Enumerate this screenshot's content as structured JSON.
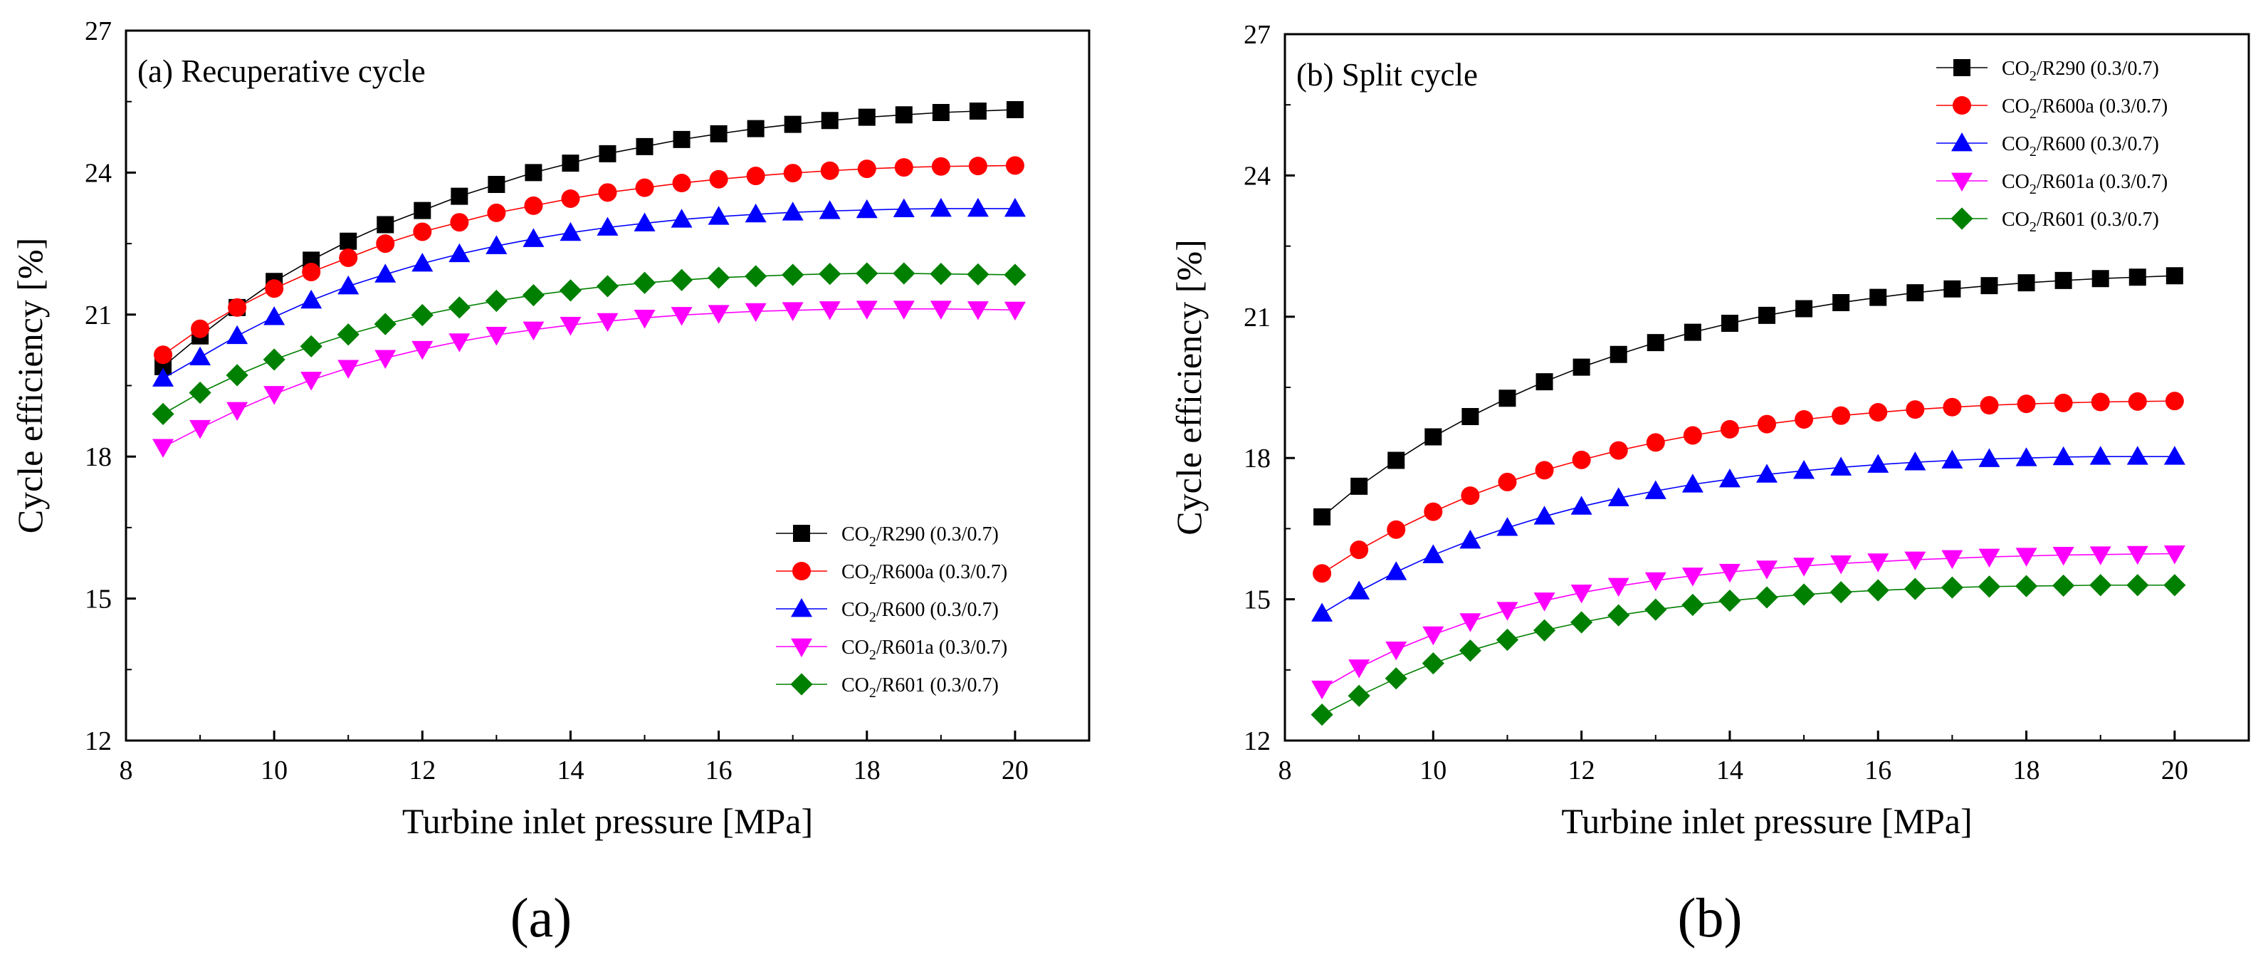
{
  "caption_a": "(a)",
  "caption_b": "(b)",
  "chart_data": [
    {
      "type": "line",
      "title": "(a) Recuperative cycle",
      "xlabel": "Turbine inlet pressure [MPa]",
      "ylabel": "Cycle efficiency [%]",
      "xlim": [
        8,
        21
      ],
      "ylim": [
        12,
        27
      ],
      "xticks": [
        8,
        10,
        12,
        14,
        16,
        18,
        20
      ],
      "yticks": [
        12,
        15,
        18,
        21,
        24,
        27
      ],
      "legend_position": "bottom-right",
      "x": [
        8.5,
        9,
        9.5,
        10,
        10.5,
        11,
        11.5,
        12,
        12.5,
        13,
        13.5,
        14,
        14.5,
        15,
        15.5,
        16,
        16.5,
        17,
        17.5,
        18,
        18.5,
        19,
        19.5,
        20
      ],
      "series": [
        {
          "name": "R290",
          "label_prefix": "CO",
          "label_sub": "2",
          "label_suffix": "/R290 (0.3/0.7)",
          "color": "#000000",
          "marker": "square",
          "values": [
            19.9,
            20.55,
            21.15,
            21.7,
            22.15,
            22.55,
            22.9,
            23.2,
            23.5,
            23.75,
            24.0,
            24.2,
            24.4,
            24.55,
            24.7,
            24.82,
            24.93,
            25.02,
            25.1,
            25.17,
            25.22,
            25.27,
            25.3,
            25.33
          ]
        },
        {
          "name": "R600a",
          "label_prefix": "CO",
          "label_sub": "2",
          "label_suffix": "/R600a (0.3/0.7)",
          "color": "#ff0000",
          "marker": "circle",
          "values": [
            20.15,
            20.7,
            21.15,
            21.55,
            21.9,
            22.2,
            22.5,
            22.75,
            22.95,
            23.15,
            23.3,
            23.45,
            23.58,
            23.68,
            23.78,
            23.86,
            23.93,
            23.99,
            24.04,
            24.08,
            24.11,
            24.13,
            24.14,
            24.15
          ]
        },
        {
          "name": "R600",
          "label_prefix": "CO",
          "label_sub": "2",
          "label_suffix": "/R600 (0.3/0.7)",
          "color": "#0000ff",
          "marker": "triangle-up",
          "values": [
            19.65,
            20.1,
            20.55,
            20.95,
            21.3,
            21.6,
            21.85,
            22.08,
            22.28,
            22.45,
            22.6,
            22.73,
            22.84,
            22.93,
            23.01,
            23.07,
            23.12,
            23.16,
            23.19,
            23.21,
            23.23,
            23.24,
            23.24,
            23.24
          ]
        },
        {
          "name": "R601a",
          "label_prefix": "CO",
          "label_sub": "2",
          "label_suffix": "/R601a (0.3/0.7)",
          "color": "#ff00ff",
          "marker": "triangle-down",
          "values": [
            18.2,
            18.6,
            18.98,
            19.32,
            19.62,
            19.87,
            20.08,
            20.27,
            20.43,
            20.57,
            20.68,
            20.78,
            20.86,
            20.93,
            20.99,
            21.03,
            21.07,
            21.09,
            21.11,
            21.12,
            21.12,
            21.12,
            21.11,
            21.1
          ]
        },
        {
          "name": "R601",
          "label_prefix": "CO",
          "label_sub": "2",
          "label_suffix": "/R601 (0.3/0.7)",
          "color": "#008000",
          "marker": "diamond",
          "values": [
            18.9,
            19.35,
            19.72,
            20.05,
            20.33,
            20.58,
            20.8,
            20.99,
            21.15,
            21.29,
            21.41,
            21.51,
            21.6,
            21.67,
            21.73,
            21.78,
            21.81,
            21.84,
            21.86,
            21.87,
            21.87,
            21.86,
            21.85,
            21.84
          ]
        }
      ]
    },
    {
      "type": "line",
      "title": "(b) Split cycle",
      "xlabel": "Turbine inlet pressure [MPa]",
      "ylabel": "Cycle efficiency [%]",
      "xlim": [
        8,
        21
      ],
      "ylim": [
        12,
        27
      ],
      "xticks": [
        8,
        10,
        12,
        14,
        16,
        18,
        20
      ],
      "yticks": [
        12,
        15,
        18,
        21,
        24,
        27
      ],
      "legend_position": "top-right",
      "x": [
        8.5,
        9,
        9.5,
        10,
        10.5,
        11,
        11.5,
        12,
        12.5,
        13,
        13.5,
        14,
        14.5,
        15,
        15.5,
        16,
        16.5,
        17,
        17.5,
        18,
        18.5,
        19,
        19.5,
        20
      ],
      "series": [
        {
          "name": "R290",
          "label_prefix": "CO",
          "label_sub": "2",
          "label_suffix": "/R290 (0.3/0.7)",
          "color": "#000000",
          "marker": "square",
          "values": [
            16.75,
            17.4,
            17.95,
            18.45,
            18.88,
            19.27,
            19.62,
            19.93,
            20.2,
            20.45,
            20.67,
            20.86,
            21.03,
            21.17,
            21.3,
            21.41,
            21.51,
            21.59,
            21.66,
            21.72,
            21.77,
            21.81,
            21.84,
            21.87
          ]
        },
        {
          "name": "R600a",
          "label_prefix": "CO",
          "label_sub": "2",
          "label_suffix": "/R600a (0.3/0.7)",
          "color": "#ff0000",
          "marker": "circle",
          "values": [
            15.55,
            16.05,
            16.48,
            16.86,
            17.2,
            17.49,
            17.74,
            17.96,
            18.16,
            18.33,
            18.48,
            18.61,
            18.72,
            18.82,
            18.9,
            18.97,
            19.03,
            19.08,
            19.12,
            19.15,
            19.17,
            19.19,
            19.2,
            19.21
          ]
        },
        {
          "name": "R600",
          "label_prefix": "CO",
          "label_sub": "2",
          "label_suffix": "/R600 (0.3/0.7)",
          "color": "#0000ff",
          "marker": "triangle-up",
          "values": [
            14.7,
            15.17,
            15.58,
            15.94,
            16.25,
            16.52,
            16.76,
            16.97,
            17.15,
            17.3,
            17.44,
            17.55,
            17.65,
            17.73,
            17.8,
            17.86,
            17.91,
            17.95,
            17.98,
            18.0,
            18.02,
            18.03,
            18.03,
            18.03
          ]
        },
        {
          "name": "R601a",
          "label_prefix": "CO",
          "label_sub": "2",
          "label_suffix": "/R601a (0.3/0.7)",
          "color": "#ff00ff",
          "marker": "triangle-down",
          "values": [
            13.1,
            13.55,
            13.93,
            14.25,
            14.53,
            14.77,
            14.97,
            15.14,
            15.28,
            15.4,
            15.5,
            15.58,
            15.65,
            15.71,
            15.76,
            15.8,
            15.84,
            15.87,
            15.9,
            15.92,
            15.94,
            15.95,
            15.96,
            15.97
          ]
        },
        {
          "name": "R601",
          "label_prefix": "CO",
          "label_sub": "2",
          "label_suffix": "/R601 (0.3/0.7)",
          "color": "#008000",
          "marker": "diamond",
          "values": [
            12.55,
            12.95,
            13.32,
            13.64,
            13.91,
            14.14,
            14.34,
            14.51,
            14.66,
            14.78,
            14.88,
            14.97,
            15.04,
            15.1,
            15.15,
            15.19,
            15.22,
            15.25,
            15.27,
            15.28,
            15.29,
            15.3,
            15.3,
            15.3
          ]
        }
      ]
    }
  ]
}
